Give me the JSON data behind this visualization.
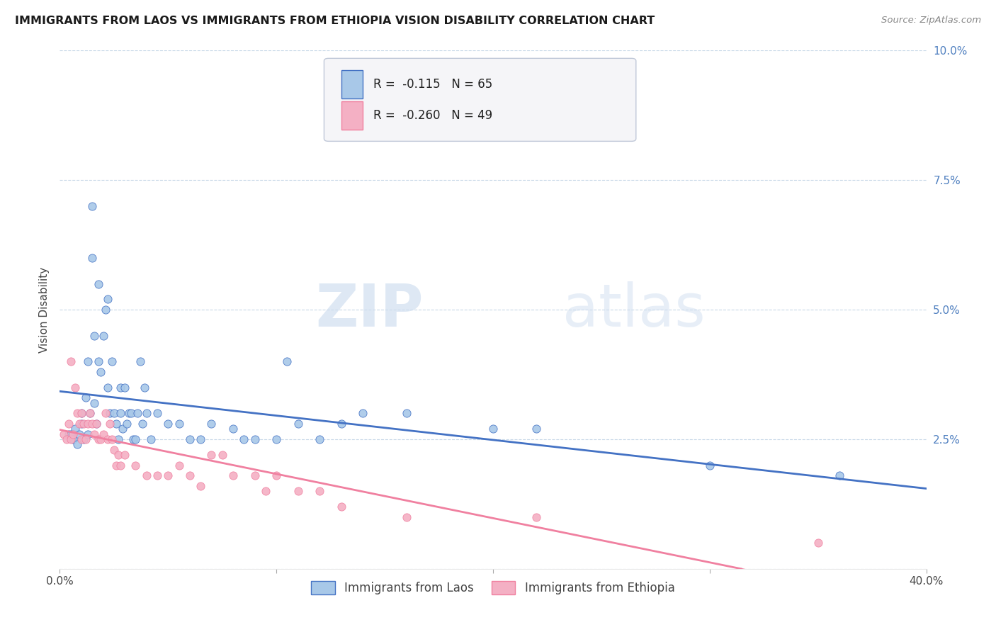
{
  "title": "IMMIGRANTS FROM LAOS VS IMMIGRANTS FROM ETHIOPIA VISION DISABILITY CORRELATION CHART",
  "source": "Source: ZipAtlas.com",
  "ylabel": "Vision Disability",
  "xlim": [
    0.0,
    0.4
  ],
  "ylim": [
    0.0,
    0.1
  ],
  "xticks": [
    0.0,
    0.1,
    0.2,
    0.3,
    0.4
  ],
  "xticklabels": [
    "0.0%",
    "",
    "",
    "",
    "40.0%"
  ],
  "yticks": [
    0.0,
    0.025,
    0.05,
    0.075,
    0.1
  ],
  "yticklabels": [
    "",
    "2.5%",
    "5.0%",
    "7.5%",
    "10.0%"
  ],
  "legend_labels": [
    "Immigrants from Laos",
    "Immigrants from Ethiopia"
  ],
  "laos_R": "-0.115",
  "laos_N": "65",
  "ethiopia_R": "-0.260",
  "ethiopia_N": "49",
  "laos_color": "#a8c8e8",
  "ethiopia_color": "#f4b0c4",
  "laos_line_color": "#4472c4",
  "ethiopia_line_color": "#f080a0",
  "watermark_zip": "ZIP",
  "watermark_atlas": "atlas",
  "title_color": "#1a1a1a",
  "tick_color": "#5080c0",
  "laos_scatter": [
    [
      0.004,
      0.026
    ],
    [
      0.005,
      0.026
    ],
    [
      0.006,
      0.025
    ],
    [
      0.007,
      0.027
    ],
    [
      0.008,
      0.024
    ],
    [
      0.009,
      0.026
    ],
    [
      0.01,
      0.028
    ],
    [
      0.01,
      0.03
    ],
    [
      0.011,
      0.025
    ],
    [
      0.012,
      0.033
    ],
    [
      0.013,
      0.026
    ],
    [
      0.013,
      0.04
    ],
    [
      0.014,
      0.03
    ],
    [
      0.015,
      0.06
    ],
    [
      0.015,
      0.07
    ],
    [
      0.016,
      0.032
    ],
    [
      0.016,
      0.045
    ],
    [
      0.017,
      0.028
    ],
    [
      0.018,
      0.04
    ],
    [
      0.018,
      0.055
    ],
    [
      0.019,
      0.038
    ],
    [
      0.02,
      0.045
    ],
    [
      0.021,
      0.05
    ],
    [
      0.022,
      0.052
    ],
    [
      0.022,
      0.035
    ],
    [
      0.023,
      0.03
    ],
    [
      0.024,
      0.04
    ],
    [
      0.025,
      0.03
    ],
    [
      0.026,
      0.028
    ],
    [
      0.027,
      0.025
    ],
    [
      0.028,
      0.035
    ],
    [
      0.028,
      0.03
    ],
    [
      0.029,
      0.027
    ],
    [
      0.03,
      0.035
    ],
    [
      0.031,
      0.028
    ],
    [
      0.032,
      0.03
    ],
    [
      0.033,
      0.03
    ],
    [
      0.034,
      0.025
    ],
    [
      0.035,
      0.025
    ],
    [
      0.036,
      0.03
    ],
    [
      0.037,
      0.04
    ],
    [
      0.038,
      0.028
    ],
    [
      0.039,
      0.035
    ],
    [
      0.04,
      0.03
    ],
    [
      0.042,
      0.025
    ],
    [
      0.045,
      0.03
    ],
    [
      0.05,
      0.028
    ],
    [
      0.055,
      0.028
    ],
    [
      0.06,
      0.025
    ],
    [
      0.065,
      0.025
    ],
    [
      0.07,
      0.028
    ],
    [
      0.08,
      0.027
    ],
    [
      0.085,
      0.025
    ],
    [
      0.09,
      0.025
    ],
    [
      0.1,
      0.025
    ],
    [
      0.105,
      0.04
    ],
    [
      0.11,
      0.028
    ],
    [
      0.12,
      0.025
    ],
    [
      0.13,
      0.028
    ],
    [
      0.14,
      0.03
    ],
    [
      0.16,
      0.03
    ],
    [
      0.2,
      0.027
    ],
    [
      0.22,
      0.027
    ],
    [
      0.3,
      0.02
    ],
    [
      0.36,
      0.018
    ]
  ],
  "ethiopia_scatter": [
    [
      0.002,
      0.026
    ],
    [
      0.003,
      0.025
    ],
    [
      0.004,
      0.028
    ],
    [
      0.005,
      0.025
    ],
    [
      0.005,
      0.04
    ],
    [
      0.006,
      0.026
    ],
    [
      0.007,
      0.035
    ],
    [
      0.008,
      0.03
    ],
    [
      0.009,
      0.028
    ],
    [
      0.01,
      0.025
    ],
    [
      0.01,
      0.03
    ],
    [
      0.011,
      0.028
    ],
    [
      0.012,
      0.025
    ],
    [
      0.013,
      0.028
    ],
    [
      0.014,
      0.03
    ],
    [
      0.015,
      0.028
    ],
    [
      0.016,
      0.026
    ],
    [
      0.017,
      0.028
    ],
    [
      0.018,
      0.025
    ],
    [
      0.019,
      0.025
    ],
    [
      0.02,
      0.026
    ],
    [
      0.021,
      0.03
    ],
    [
      0.022,
      0.025
    ],
    [
      0.023,
      0.028
    ],
    [
      0.024,
      0.025
    ],
    [
      0.025,
      0.023
    ],
    [
      0.026,
      0.02
    ],
    [
      0.027,
      0.022
    ],
    [
      0.028,
      0.02
    ],
    [
      0.03,
      0.022
    ],
    [
      0.035,
      0.02
    ],
    [
      0.04,
      0.018
    ],
    [
      0.045,
      0.018
    ],
    [
      0.05,
      0.018
    ],
    [
      0.055,
      0.02
    ],
    [
      0.06,
      0.018
    ],
    [
      0.065,
      0.016
    ],
    [
      0.07,
      0.022
    ],
    [
      0.075,
      0.022
    ],
    [
      0.08,
      0.018
    ],
    [
      0.09,
      0.018
    ],
    [
      0.095,
      0.015
    ],
    [
      0.1,
      0.018
    ],
    [
      0.11,
      0.015
    ],
    [
      0.12,
      0.015
    ],
    [
      0.13,
      0.012
    ],
    [
      0.16,
      0.01
    ],
    [
      0.22,
      0.01
    ],
    [
      0.35,
      0.005
    ]
  ]
}
